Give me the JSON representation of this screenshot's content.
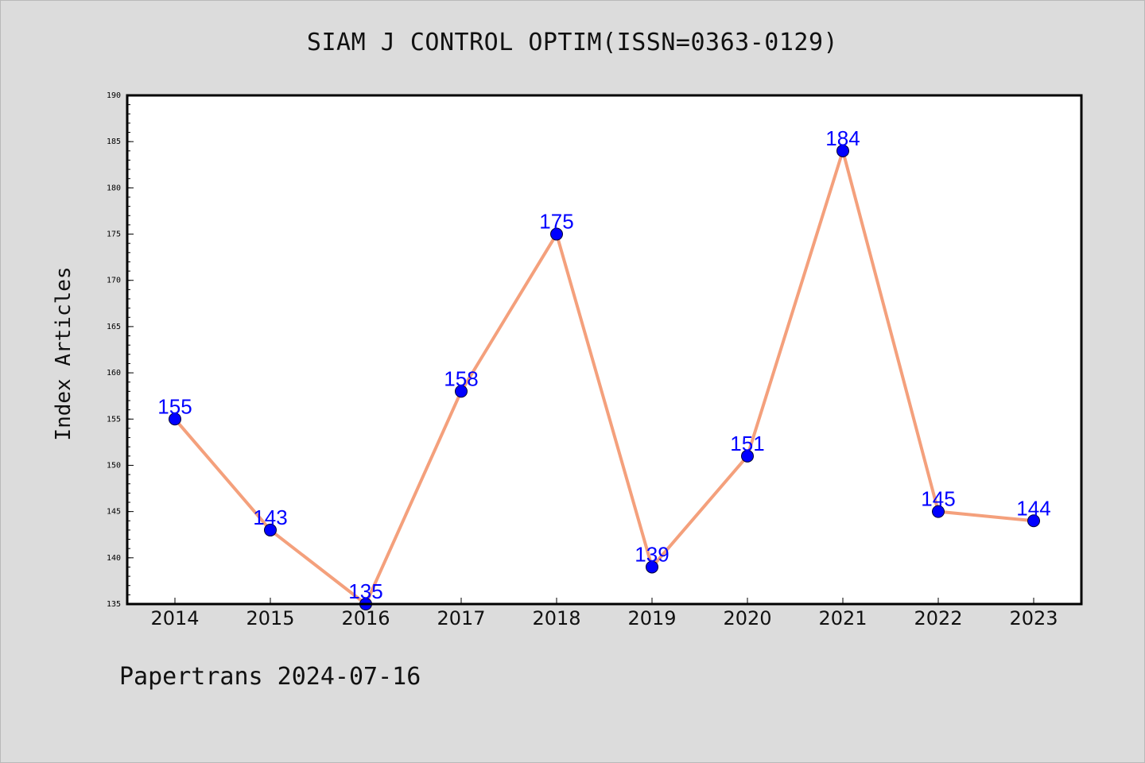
{
  "header": {
    "title": "SIAM J CONTROL OPTIM(ISSN=0363-0129)"
  },
  "footer": {
    "text": "Papertrans 2024-07-16"
  },
  "chart_data": {
    "type": "line",
    "title": "SIAM J CONTROL OPTIM(ISSN=0363-0129)",
    "xlabel": "",
    "ylabel": "Index Articles",
    "categories": [
      "2014",
      "2015",
      "2016",
      "2017",
      "2018",
      "2019",
      "2020",
      "2021",
      "2022",
      "2023"
    ],
    "series": [
      {
        "values": [
          155,
          143,
          135,
          158,
          175,
          139,
          151,
          184,
          145,
          144
        ],
        "line_color": "#f4a07c",
        "marker_color": "#0000ff"
      }
    ],
    "data_labels": [
      "155",
      "143",
      "135",
      "158",
      "175",
      "139",
      "151",
      "184",
      "145",
      "144"
    ],
    "ylim": [
      135,
      190
    ],
    "yticks": [
      "135",
      "140",
      "145",
      "150",
      "155",
      "160",
      "165",
      "170",
      "175",
      "180",
      "185",
      "190"
    ],
    "grid": false,
    "legend": "none"
  }
}
